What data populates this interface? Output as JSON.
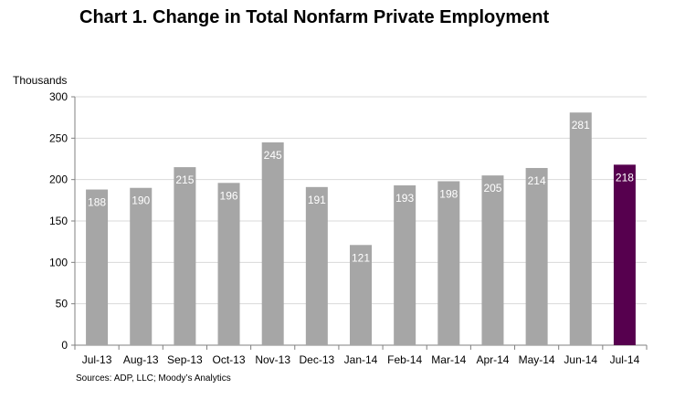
{
  "chart_data": {
    "type": "bar",
    "title": "Chart 1. Change in Total Nonfarm Private Employment",
    "ylabel": "Thousands",
    "xlabel": "",
    "ylim": [
      0,
      300
    ],
    "yticks": [
      0,
      50,
      100,
      150,
      200,
      250,
      300
    ],
    "grid": true,
    "categories": [
      "Jul-13",
      "Aug-13",
      "Sep-13",
      "Oct-13",
      "Nov-13",
      "Dec-13",
      "Jan-14",
      "Feb-14",
      "Mar-14",
      "Apr-14",
      "May-14",
      "Jun-14",
      "Jul-14"
    ],
    "values": [
      188,
      190,
      215,
      196,
      245,
      191,
      121,
      193,
      198,
      205,
      214,
      281,
      218
    ],
    "bar_color": "#a6a6a6",
    "highlight_color": "#56004e",
    "highlight_index": 12,
    "source": "Sources: ADP, LLC; Moody’s Analytics"
  }
}
